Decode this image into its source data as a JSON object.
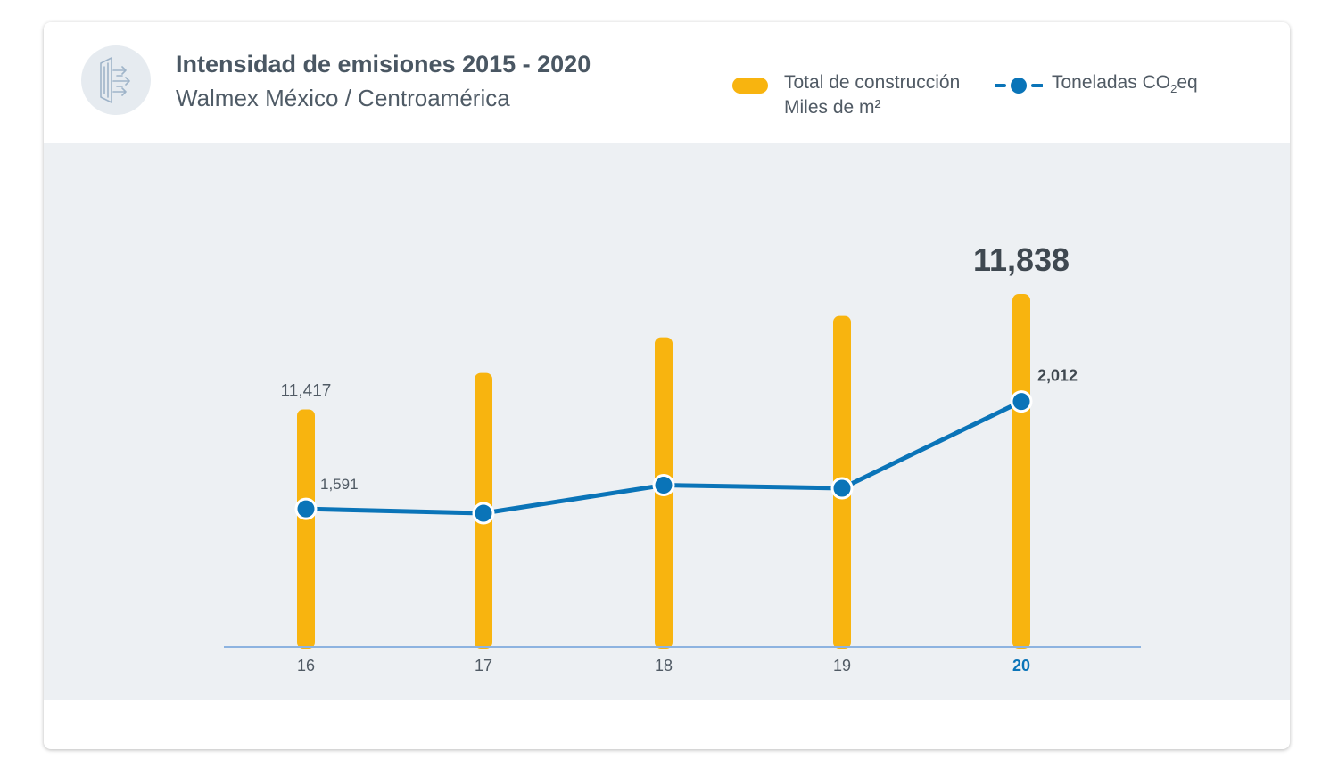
{
  "header": {
    "title": "Intensidad de emisiones 2015 - 2020",
    "subtitle": "Walmex México / Centroamérica",
    "icon": "emissions-arrows-icon"
  },
  "legend": {
    "bar_label_line1": "Total de construcción",
    "bar_label_line2": "Miles de m²",
    "line_label_prefix": "Toneladas CO",
    "line_label_sub": "2",
    "line_label_suffix": "eq"
  },
  "colors": {
    "bar": "#f8b40f",
    "line": "#0a74b8",
    "axis": "#8db3e0",
    "highlight_tick": "#0a74b8",
    "text": "#505a64",
    "plot_bg": "#edf0f3"
  },
  "chart_data": {
    "type": "bar",
    "title": "Intensidad de emisiones 2015 - 2020",
    "subtitle": "Walmex México / Centroamérica",
    "categories": [
      "16",
      "17",
      "18",
      "19",
      "20"
    ],
    "highlight_category": "20",
    "series": [
      {
        "name": "Total de construcción Miles de m²",
        "type": "bar",
        "values": [
          11417,
          11550,
          11680,
          11758,
          11838
        ],
        "labels": [
          "11,417",
          "",
          "",
          "",
          "11,838"
        ]
      },
      {
        "name": "Toneladas CO2eq",
        "type": "line",
        "values": [
          1591,
          1574,
          1684,
          1672,
          2012
        ],
        "labels": [
          "1,591",
          "",
          "",
          "",
          "2,012"
        ]
      }
    ],
    "bar_ylim": [
      10550,
      11900
    ],
    "line_ylim": [
      1050,
      2500
    ],
    "grid": false,
    "legend_position": "top-right"
  }
}
